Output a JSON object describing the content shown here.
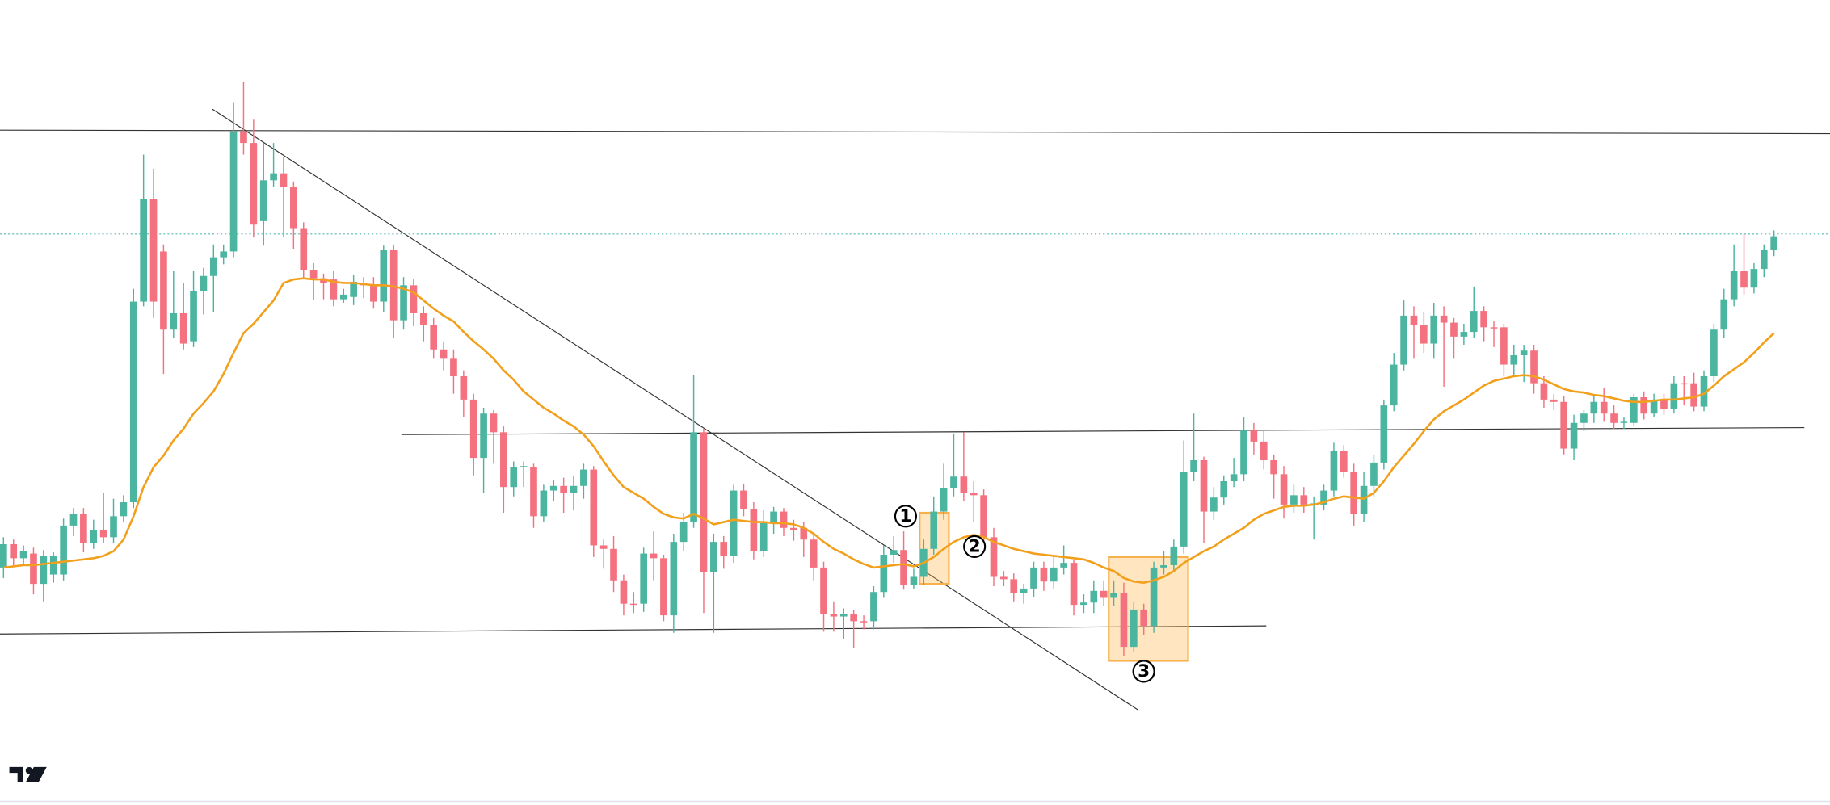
{
  "chart_data": {
    "type": "candlestick",
    "ylim": [
      0,
      685
    ],
    "up_color": "#4cb5a0",
    "down_color": "#f4717f",
    "candles": [
      [
        201,
        227,
        192,
        221
      ],
      [
        221,
        225,
        203,
        209
      ],
      [
        209,
        220,
        203,
        215
      ],
      [
        213,
        218,
        178,
        187
      ],
      [
        187,
        216,
        172,
        211
      ],
      [
        195,
        214,
        188,
        211
      ],
      [
        195,
        243,
        190,
        237
      ],
      [
        237,
        252,
        228,
        247
      ],
      [
        247,
        252,
        214,
        222
      ],
      [
        222,
        242,
        217,
        233
      ],
      [
        233,
        265,
        222,
        227
      ],
      [
        227,
        260,
        222,
        245
      ],
      [
        245,
        263,
        240,
        257
      ],
      [
        257,
        440,
        252,
        429
      ],
      [
        429,
        555,
        425,
        517
      ],
      [
        517,
        543,
        415,
        429
      ],
      [
        472,
        478,
        367,
        405
      ],
      [
        405,
        455,
        398,
        419
      ],
      [
        419,
        445,
        388,
        393
      ],
      [
        395,
        455,
        390,
        438
      ],
      [
        438,
        458,
        418,
        451
      ],
      [
        451,
        478,
        420,
        467
      ],
      [
        467,
        478,
        461,
        472
      ],
      [
        472,
        600,
        467,
        575
      ],
      [
        575,
        617,
        555,
        565
      ],
      [
        565,
        585,
        484,
        495
      ],
      [
        498,
        565,
        477,
        533
      ],
      [
        533,
        565,
        527,
        539
      ],
      [
        539,
        553,
        484,
        527
      ],
      [
        527,
        532,
        474,
        492
      ],
      [
        492,
        497,
        448,
        456
      ],
      [
        456,
        462,
        430,
        449
      ],
      [
        449,
        453,
        431,
        445
      ],
      [
        448,
        455,
        425,
        431
      ],
      [
        431,
        440,
        428,
        435
      ],
      [
        433,
        452,
        426,
        446
      ],
      [
        445,
        450,
        432,
        443
      ],
      [
        443,
        450,
        423,
        429
      ],
      [
        429,
        477,
        420,
        473
      ],
      [
        473,
        478,
        398,
        413
      ],
      [
        413,
        450,
        405,
        443
      ],
      [
        443,
        448,
        408,
        419
      ],
      [
        419,
        425,
        395,
        409
      ],
      [
        409,
        415,
        380,
        388
      ],
      [
        388,
        395,
        370,
        380
      ],
      [
        380,
        388,
        350,
        365
      ],
      [
        365,
        370,
        330,
        345
      ],
      [
        345,
        350,
        280,
        295
      ],
      [
        295,
        338,
        265,
        333
      ],
      [
        333,
        336,
        290,
        317
      ],
      [
        317,
        322,
        248,
        270
      ],
      [
        270,
        292,
        262,
        287
      ],
      [
        287,
        292,
        270,
        288
      ],
      [
        287,
        290,
        235,
        245
      ],
      [
        245,
        272,
        240,
        267
      ],
      [
        267,
        276,
        258,
        271
      ],
      [
        271,
        278,
        248,
        265
      ],
      [
        265,
        280,
        250,
        271
      ],
      [
        271,
        290,
        260,
        285
      ],
      [
        285,
        288,
        210,
        220
      ],
      [
        220,
        225,
        200,
        217
      ],
      [
        217,
        228,
        180,
        190
      ],
      [
        190,
        195,
        160,
        170
      ],
      [
        170,
        180,
        162,
        169
      ],
      [
        170,
        218,
        163,
        213
      ],
      [
        213,
        232,
        190,
        209
      ],
      [
        209,
        212,
        155,
        160
      ],
      [
        160,
        230,
        145,
        223
      ],
      [
        223,
        248,
        215,
        240
      ],
      [
        240,
        366,
        235,
        317
      ],
      [
        317,
        320,
        162,
        197
      ],
      [
        197,
        230,
        145,
        223
      ],
      [
        223,
        228,
        200,
        211
      ],
      [
        211,
        272,
        205,
        267
      ],
      [
        267,
        273,
        245,
        251
      ],
      [
        251,
        257,
        208,
        215
      ],
      [
        215,
        250,
        210,
        239
      ],
      [
        239,
        253,
        230,
        249
      ],
      [
        249,
        252,
        228,
        235
      ],
      [
        235,
        242,
        224,
        233
      ],
      [
        235,
        240,
        210,
        225
      ],
      [
        225,
        230,
        190,
        201
      ],
      [
        201,
        206,
        146,
        161
      ],
      [
        161,
        172,
        146,
        159
      ],
      [
        159,
        166,
        140,
        161
      ],
      [
        161,
        165,
        132,
        155
      ],
      [
        155,
        160,
        148,
        154
      ],
      [
        155,
        185,
        148,
        180
      ],
      [
        180,
        220,
        175,
        212
      ],
      [
        212,
        228,
        205,
        216
      ],
      [
        216,
        232,
        182,
        186
      ],
      [
        186,
        200,
        183,
        193
      ],
      [
        193,
        225,
        186,
        217
      ],
      [
        217,
        262,
        212,
        249
      ],
      [
        249,
        290,
        242,
        269
      ],
      [
        269,
        316,
        262,
        279
      ],
      [
        279,
        317,
        258,
        265
      ],
      [
        265,
        275,
        240,
        263
      ],
      [
        263,
        268,
        220,
        227
      ],
      [
        227,
        235,
        185,
        193
      ],
      [
        193,
        198,
        185,
        191
      ],
      [
        191,
        196,
        172,
        179
      ],
      [
        179,
        187,
        170,
        183
      ],
      [
        183,
        206,
        176,
        201
      ],
      [
        201,
        206,
        181,
        189
      ],
      [
        189,
        210,
        183,
        201
      ],
      [
        201,
        220,
        195,
        205
      ],
      [
        205,
        208,
        160,
        169
      ],
      [
        169,
        178,
        162,
        171
      ],
      [
        171,
        190,
        162,
        181
      ],
      [
        181,
        190,
        168,
        175
      ],
      [
        175,
        190,
        168,
        179
      ],
      [
        179,
        188,
        125,
        133
      ],
      [
        133,
        172,
        128,
        165
      ],
      [
        165,
        170,
        143,
        151
      ],
      [
        151,
        206,
        145,
        201
      ],
      [
        201,
        215,
        195,
        203
      ],
      [
        203,
        225,
        198,
        219
      ],
      [
        219,
        310,
        213,
        283
      ],
      [
        283,
        333,
        275,
        293
      ],
      [
        293,
        296,
        222,
        249
      ],
      [
        249,
        270,
        242,
        261
      ],
      [
        261,
        280,
        255,
        275
      ],
      [
        275,
        295,
        270,
        281
      ],
      [
        281,
        330,
        275,
        319
      ],
      [
        319,
        325,
        298,
        309
      ],
      [
        309,
        318,
        285,
        293
      ],
      [
        293,
        298,
        260,
        281
      ],
      [
        281,
        288,
        243,
        255
      ],
      [
        255,
        272,
        248,
        263
      ],
      [
        263,
        270,
        248,
        255
      ],
      [
        255,
        262,
        225,
        256
      ],
      [
        255,
        272,
        250,
        267
      ],
      [
        267,
        308,
        262,
        301
      ],
      [
        301,
        306,
        278,
        283
      ],
      [
        283,
        290,
        237,
        247
      ],
      [
        247,
        283,
        240,
        271
      ],
      [
        271,
        298,
        262,
        291
      ],
      [
        291,
        345,
        285,
        340
      ],
      [
        340,
        385,
        335,
        375
      ],
      [
        375,
        430,
        370,
        417
      ],
      [
        417,
        425,
        380,
        409
      ],
      [
        409,
        420,
        385,
        393
      ],
      [
        393,
        428,
        380,
        417
      ],
      [
        417,
        425,
        356,
        411
      ],
      [
        411,
        415,
        380,
        399
      ],
      [
        399,
        410,
        392,
        403
      ],
      [
        403,
        442,
        398,
        421
      ],
      [
        421,
        425,
        395,
        407
      ],
      [
        407,
        412,
        390,
        406
      ],
      [
        407,
        410,
        365,
        375
      ],
      [
        375,
        392,
        365,
        383
      ],
      [
        383,
        392,
        360,
        387
      ],
      [
        387,
        392,
        350,
        359
      ],
      [
        359,
        365,
        338,
        345
      ],
      [
        345,
        350,
        336,
        343
      ],
      [
        343,
        348,
        298,
        303
      ],
      [
        303,
        332,
        293,
        325
      ],
      [
        325,
        336,
        318,
        333
      ],
      [
        333,
        348,
        325,
        343
      ],
      [
        343,
        355,
        326,
        333
      ],
      [
        333,
        340,
        320,
        325
      ],
      [
        325,
        330,
        320,
        326
      ],
      [
        325,
        350,
        322,
        347
      ],
      [
        347,
        352,
        328,
        333
      ],
      [
        333,
        350,
        330,
        345
      ],
      [
        345,
        350,
        332,
        337
      ],
      [
        337,
        365,
        333,
        359
      ],
      [
        359,
        365,
        340,
        358
      ],
      [
        359,
        368,
        335,
        339
      ],
      [
        339,
        370,
        335,
        365
      ],
      [
        365,
        410,
        360,
        405
      ],
      [
        405,
        440,
        398,
        431
      ],
      [
        431,
        478,
        425,
        455
      ],
      [
        455,
        487,
        435,
        441
      ],
      [
        441,
        462,
        436,
        457
      ],
      [
        457,
        478,
        450,
        473
      ],
      [
        473,
        490,
        468,
        485
      ]
    ],
    "series": [
      {
        "color": "#f2a01b",
        "values": [
          201,
          202,
          203,
          203,
          204,
          205,
          206,
          207,
          208,
          209,
          211,
          215,
          225,
          245,
          270,
          287,
          297,
          310,
          320,
          333,
          342,
          352,
          367,
          385,
          402,
          410,
          420,
          430,
          445,
          448,
          449,
          448,
          448,
          446,
          445,
          445,
          444,
          443,
          443,
          442,
          440,
          437,
          430,
          423,
          417,
          412,
          403,
          395,
          388,
          380,
          370,
          362,
          352,
          345,
          338,
          333,
          327,
          322,
          315,
          305,
          292,
          280,
          270,
          265,
          260,
          253,
          247,
          244,
          243,
          247,
          243,
          238,
          240,
          242,
          241,
          240,
          240,
          239,
          239,
          238,
          235,
          230,
          223,
          217,
          213,
          208,
          204,
          201,
          202,
          203,
          204,
          202,
          205,
          210,
          217,
          223,
          227,
          229,
          227,
          223,
          220,
          217,
          215,
          213,
          212,
          211,
          210,
          209,
          208,
          205,
          201,
          198,
          192,
          189,
          188,
          190,
          193,
          198,
          205,
          210,
          215,
          219,
          225,
          230,
          235,
          242,
          247,
          250,
          253,
          254,
          254,
          255,
          257,
          260,
          262,
          261,
          260,
          265,
          275,
          287,
          297,
          307,
          318,
          328,
          335,
          340,
          345,
          351,
          357,
          361,
          363,
          365,
          366,
          365,
          362,
          358,
          354,
          352,
          351,
          349,
          348,
          346,
          344,
          343,
          343,
          344,
          345,
          345,
          346,
          347,
          350,
          357,
          365,
          371,
          377,
          385,
          394,
          402
        ]
      }
    ],
    "annotations": [
      "1",
      "2",
      "3"
    ]
  }
}
